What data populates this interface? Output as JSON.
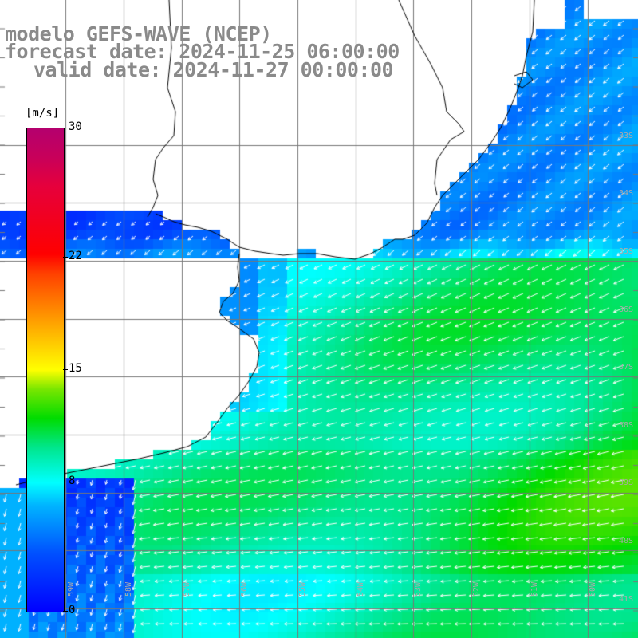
{
  "title": {
    "line1": "modelo GEFS-WAVE (NCEP)",
    "line2": "forecast date: 2024-11-25 06:00:00",
    "line3": "valid date: 2024-11-27 00:00:00"
  },
  "legend": {
    "unit": "[m/s]",
    "ticks": [
      {
        "label": "30",
        "value": 30
      },
      {
        "label": "22",
        "value": 22
      },
      {
        "label": "15",
        "value": 15
      },
      {
        "label": "8",
        "value": 8
      },
      {
        "label": "0",
        "value": 0
      }
    ],
    "range": [
      0,
      30
    ]
  },
  "map": {
    "lat_labels": [
      "33S",
      "34S",
      "35S",
      "36S",
      "37S",
      "38S",
      "39S",
      "40S",
      "41S"
    ],
    "lon_labels": [
      "59W",
      "58W",
      "57W",
      "56W",
      "55W",
      "54W",
      "53W",
      "52W",
      "51W",
      "50W"
    ],
    "colors": {
      "land": "#ffffff",
      "coast": "#000000",
      "grid": "#777777",
      "arrow": "#ffffff"
    },
    "wind_direction": "from north-east"
  }
}
